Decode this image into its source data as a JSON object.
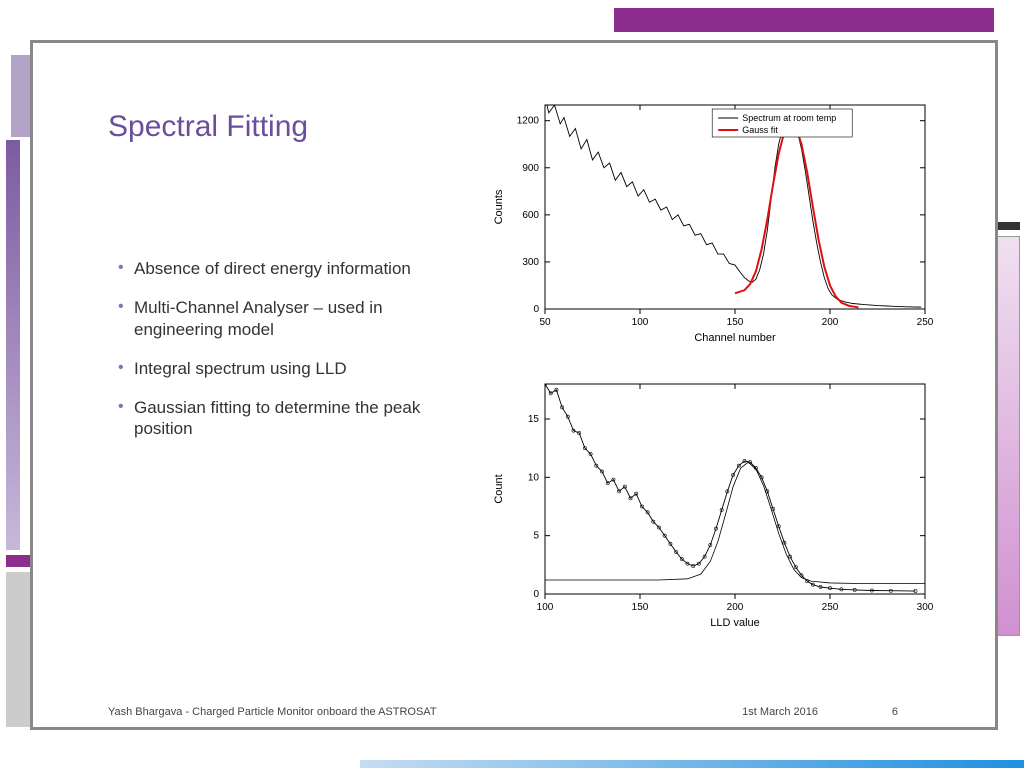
{
  "title": "Spectral Fitting",
  "bullets": [
    "Absence of direct energy information",
    "Multi-Channel Analyser – used in engineering model",
    "Integral spectrum using LLD",
    "Gaussian fitting to determine the peak position"
  ],
  "footer": {
    "author": "Yash Bhargava - Charged Particle Monitor onboard the ASTROSAT",
    "date": "1st March 2016",
    "page": "6"
  },
  "chart1": {
    "type": "line",
    "xlabel": "Channel number",
    "ylabel": "Counts",
    "xlim": [
      50,
      250
    ],
    "ylim": [
      0,
      1300
    ],
    "xticks": [
      50,
      100,
      150,
      200,
      250
    ],
    "yticks": [
      0,
      300,
      600,
      900,
      1200
    ],
    "legend": [
      {
        "label": "Spectrum at room temp",
        "color": "#000000"
      },
      {
        "label": "Gauss fit",
        "color": "#e01010"
      }
    ],
    "spectrum_color": "#000000",
    "spectrum": [
      [
        50,
        1350
      ],
      [
        52,
        1250
      ],
      [
        55,
        1300
      ],
      [
        58,
        1180
      ],
      [
        60,
        1220
      ],
      [
        63,
        1100
      ],
      [
        66,
        1150
      ],
      [
        69,
        1020
      ],
      [
        72,
        1080
      ],
      [
        75,
        950
      ],
      [
        78,
        1000
      ],
      [
        81,
        900
      ],
      [
        84,
        930
      ],
      [
        87,
        820
      ],
      [
        90,
        870
      ],
      [
        93,
        780
      ],
      [
        96,
        810
      ],
      [
        99,
        720
      ],
      [
        102,
        760
      ],
      [
        105,
        680
      ],
      [
        108,
        700
      ],
      [
        111,
        630
      ],
      [
        114,
        650
      ],
      [
        117,
        570
      ],
      [
        120,
        600
      ],
      [
        123,
        530
      ],
      [
        126,
        540
      ],
      [
        129,
        470
      ],
      [
        132,
        480
      ],
      [
        135,
        410
      ],
      [
        138,
        420
      ],
      [
        141,
        350
      ],
      [
        144,
        350
      ],
      [
        147,
        290
      ],
      [
        150,
        280
      ],
      [
        153,
        230
      ],
      [
        155,
        200
      ],
      [
        157,
        180
      ],
      [
        159,
        170
      ],
      [
        161,
        190
      ],
      [
        163,
        250
      ],
      [
        165,
        350
      ],
      [
        167,
        500
      ],
      [
        169,
        700
      ],
      [
        171,
        900
      ],
      [
        173,
        1050
      ],
      [
        175,
        1150
      ],
      [
        177,
        1190
      ],
      [
        179,
        1210
      ],
      [
        181,
        1180
      ],
      [
        183,
        1120
      ],
      [
        185,
        1020
      ],
      [
        187,
        880
      ],
      [
        189,
        720
      ],
      [
        191,
        560
      ],
      [
        193,
        420
      ],
      [
        195,
        300
      ],
      [
        197,
        200
      ],
      [
        199,
        130
      ],
      [
        201,
        90
      ],
      [
        204,
        60
      ],
      [
        208,
        45
      ],
      [
        212,
        35
      ],
      [
        218,
        28
      ],
      [
        225,
        22
      ],
      [
        232,
        18
      ],
      [
        240,
        14
      ],
      [
        248,
        12
      ]
    ],
    "gauss_color": "#e01010",
    "gauss_width": 2,
    "gauss": [
      [
        150,
        100
      ],
      [
        155,
        120
      ],
      [
        158,
        160
      ],
      [
        161,
        240
      ],
      [
        164,
        380
      ],
      [
        167,
        570
      ],
      [
        170,
        790
      ],
      [
        173,
        990
      ],
      [
        176,
        1130
      ],
      [
        179,
        1190
      ],
      [
        182,
        1160
      ],
      [
        185,
        1050
      ],
      [
        188,
        870
      ],
      [
        191,
        650
      ],
      [
        194,
        440
      ],
      [
        197,
        270
      ],
      [
        200,
        150
      ],
      [
        203,
        80
      ],
      [
        206,
        40
      ],
      [
        210,
        20
      ],
      [
        215,
        10
      ]
    ]
  },
  "chart2": {
    "type": "line",
    "xlabel": "LLD value",
    "ylabel": "Count",
    "xlim": [
      100,
      300
    ],
    "ylim": [
      0,
      18
    ],
    "xticks": [
      100,
      150,
      200,
      250,
      300
    ],
    "yticks": [
      0,
      5,
      10,
      15
    ],
    "data_color": "#000000",
    "data": [
      [
        100,
        18
      ],
      [
        103,
        17.2
      ],
      [
        106,
        17.5
      ],
      [
        109,
        16
      ],
      [
        112,
        15.2
      ],
      [
        115,
        14
      ],
      [
        118,
        13.8
      ],
      [
        121,
        12.5
      ],
      [
        124,
        12
      ],
      [
        127,
        11
      ],
      [
        130,
        10.5
      ],
      [
        133,
        9.5
      ],
      [
        136,
        9.8
      ],
      [
        139,
        8.8
      ],
      [
        142,
        9.2
      ],
      [
        145,
        8.2
      ],
      [
        148,
        8.6
      ],
      [
        151,
        7.5
      ],
      [
        154,
        7
      ],
      [
        157,
        6.2
      ],
      [
        160,
        5.7
      ],
      [
        163,
        5
      ],
      [
        166,
        4.3
      ],
      [
        169,
        3.6
      ],
      [
        172,
        3
      ],
      [
        175,
        2.6
      ],
      [
        178,
        2.4
      ],
      [
        181,
        2.6
      ],
      [
        184,
        3.2
      ],
      [
        187,
        4.2
      ],
      [
        190,
        5.6
      ],
      [
        193,
        7.2
      ],
      [
        196,
        8.8
      ],
      [
        199,
        10.2
      ],
      [
        202,
        11
      ],
      [
        205,
        11.4
      ],
      [
        208,
        11.3
      ],
      [
        211,
        10.8
      ],
      [
        214,
        10
      ],
      [
        217,
        8.8
      ],
      [
        220,
        7.3
      ],
      [
        223,
        5.8
      ],
      [
        226,
        4.4
      ],
      [
        229,
        3.2
      ],
      [
        232,
        2.3
      ],
      [
        235,
        1.6
      ],
      [
        238,
        1.1
      ],
      [
        241,
        0.8
      ],
      [
        245,
        0.6
      ],
      [
        250,
        0.5
      ],
      [
        256,
        0.4
      ],
      [
        263,
        0.35
      ],
      [
        272,
        0.3
      ],
      [
        282,
        0.28
      ],
      [
        295,
        0.25
      ]
    ],
    "fit_color": "#000000",
    "fit": [
      [
        100,
        1.2
      ],
      [
        130,
        1.2
      ],
      [
        160,
        1.2
      ],
      [
        175,
        1.3
      ],
      [
        182,
        1.7
      ],
      [
        187,
        2.8
      ],
      [
        191,
        4.5
      ],
      [
        195,
        6.8
      ],
      [
        199,
        9.2
      ],
      [
        203,
        10.8
      ],
      [
        207,
        11.3
      ],
      [
        211,
        10.7
      ],
      [
        215,
        9.3
      ],
      [
        219,
        7.3
      ],
      [
        223,
        5.2
      ],
      [
        227,
        3.4
      ],
      [
        231,
        2.1
      ],
      [
        235,
        1.4
      ],
      [
        240,
        1.1
      ],
      [
        250,
        0.95
      ],
      [
        265,
        0.9
      ],
      [
        285,
        0.9
      ],
      [
        300,
        0.9
      ]
    ]
  },
  "colors": {
    "accent_purple": "#8d2d8d",
    "title_color": "#6b4e9b",
    "bullet_marker": "#8d6cb0",
    "frame_border": "#888888"
  }
}
